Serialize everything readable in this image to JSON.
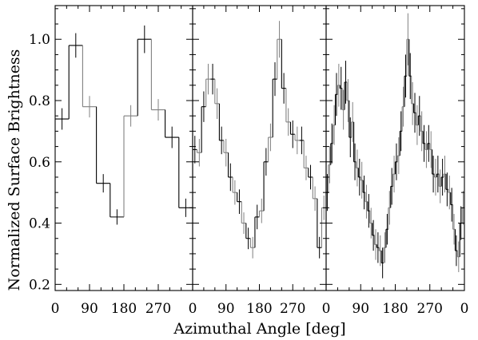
{
  "chart_data": {
    "type": "line",
    "style": "step histogram with error bars",
    "xlabel": "Azimuthal Angle [deg]",
    "ylabel": "Normalized Surface Brightness",
    "ylim": [
      0.18,
      1.11
    ],
    "yticks": [
      0.2,
      0.4,
      0.6,
      0.8,
      1.0
    ],
    "ytick_labels": [
      "0.2",
      "0.4",
      "0.6",
      "0.8",
      "1.0"
    ],
    "grid": false,
    "legend": "none",
    "colors": {
      "dark": "#000000",
      "light": "#808080"
    },
    "panels": [
      {
        "xlim": [
          0,
          360
        ],
        "xticks": [
          0,
          90,
          180,
          270
        ],
        "xtick_labels": [
          "0",
          "90",
          "180",
          "270"
        ],
        "bins": 10,
        "values": [
          0.74,
          0.98,
          0.78,
          0.53,
          0.42,
          0.75,
          1.0,
          0.77,
          0.68,
          0.45
        ],
        "errors": [
          0.035,
          0.04,
          0.035,
          0.03,
          0.025,
          0.035,
          0.045,
          0.035,
          0.035,
          0.03
        ],
        "bar_colors": [
          "dark",
          "dark",
          "light",
          "dark",
          "dark",
          "light",
          "dark",
          "light",
          "dark",
          "dark"
        ]
      },
      {
        "xlim": [
          0,
          360
        ],
        "xticks": [
          0,
          90,
          180,
          270
        ],
        "xtick_labels": [
          "0",
          "90",
          "180",
          "270"
        ],
        "bins": 30,
        "values": [
          0.64,
          0.63,
          0.78,
          0.87,
          0.87,
          0.79,
          0.67,
          0.63,
          0.55,
          0.5,
          0.47,
          0.4,
          0.35,
          0.32,
          0.42,
          0.44,
          0.6,
          0.68,
          0.87,
          1.0,
          0.84,
          0.73,
          0.69,
          0.67,
          0.67,
          0.58,
          0.55,
          0.48,
          0.32,
          0.45
        ],
        "errors": [
          0.045,
          0.045,
          0.05,
          0.05,
          0.05,
          0.05,
          0.045,
          0.045,
          0.045,
          0.04,
          0.04,
          0.035,
          0.035,
          0.035,
          0.04,
          0.04,
          0.045,
          0.045,
          0.055,
          0.06,
          0.05,
          0.045,
          0.045,
          0.045,
          0.045,
          0.04,
          0.04,
          0.04,
          0.035,
          0.04
        ],
        "bar_colors": [
          "dark",
          "light",
          "dark",
          "light",
          "dark",
          "light",
          "dark",
          "light",
          "dark",
          "light",
          "dark",
          "light",
          "dark",
          "light",
          "dark",
          "light",
          "dark",
          "light",
          "dark",
          "light",
          "dark",
          "light",
          "dark",
          "light",
          "dark",
          "light",
          "dark",
          "light",
          "dark",
          "light"
        ]
      },
      {
        "xlim": [
          0,
          360
        ],
        "xticks": [
          0,
          90,
          180,
          270
        ],
        "xtick_labels": [
          "0",
          "90",
          "180",
          "270"
        ],
        "last_tick_label": "0",
        "bins": 60,
        "values": [
          0.5,
          0.59,
          0.66,
          0.72,
          0.82,
          0.85,
          0.84,
          0.77,
          0.86,
          0.8,
          0.68,
          0.73,
          0.6,
          0.58,
          0.55,
          0.54,
          0.5,
          0.47,
          0.44,
          0.4,
          0.36,
          0.33,
          0.32,
          0.31,
          0.27,
          0.32,
          0.38,
          0.45,
          0.52,
          0.56,
          0.6,
          0.62,
          0.7,
          0.78,
          0.88,
          1.0,
          0.88,
          0.79,
          0.76,
          0.72,
          0.75,
          0.7,
          0.66,
          0.64,
          0.66,
          0.64,
          0.56,
          0.55,
          0.56,
          0.52,
          0.55,
          0.56,
          0.51,
          0.5,
          0.46,
          0.38,
          0.31,
          0.29,
          0.4,
          0.45
        ],
        "errors": [
          0.06,
          0.06,
          0.065,
          0.065,
          0.07,
          0.07,
          0.07,
          0.065,
          0.07,
          0.07,
          0.065,
          0.065,
          0.06,
          0.06,
          0.06,
          0.06,
          0.055,
          0.055,
          0.055,
          0.05,
          0.05,
          0.05,
          0.05,
          0.05,
          0.05,
          0.05,
          0.05,
          0.055,
          0.06,
          0.06,
          0.06,
          0.06,
          0.065,
          0.065,
          0.07,
          0.085,
          0.075,
          0.07,
          0.065,
          0.065,
          0.065,
          0.065,
          0.06,
          0.06,
          0.06,
          0.06,
          0.06,
          0.06,
          0.06,
          0.055,
          0.06,
          0.06,
          0.055,
          0.055,
          0.055,
          0.05,
          0.05,
          0.05,
          0.055,
          0.055
        ],
        "bar_colors": [
          "dark",
          "light",
          "dark",
          "light",
          "dark",
          "light",
          "dark",
          "light",
          "dark",
          "light",
          "dark",
          "light",
          "dark",
          "light",
          "dark",
          "light",
          "dark",
          "light",
          "dark",
          "light",
          "dark",
          "light",
          "dark",
          "light",
          "dark",
          "light",
          "dark",
          "light",
          "dark",
          "light",
          "dark",
          "light",
          "dark",
          "light",
          "dark",
          "light",
          "dark",
          "light",
          "dark",
          "light",
          "dark",
          "light",
          "dark",
          "light",
          "dark",
          "light",
          "dark",
          "light",
          "dark",
          "light",
          "dark",
          "light",
          "dark",
          "light",
          "dark",
          "light",
          "dark",
          "light",
          "dark",
          "light"
        ]
      }
    ]
  }
}
